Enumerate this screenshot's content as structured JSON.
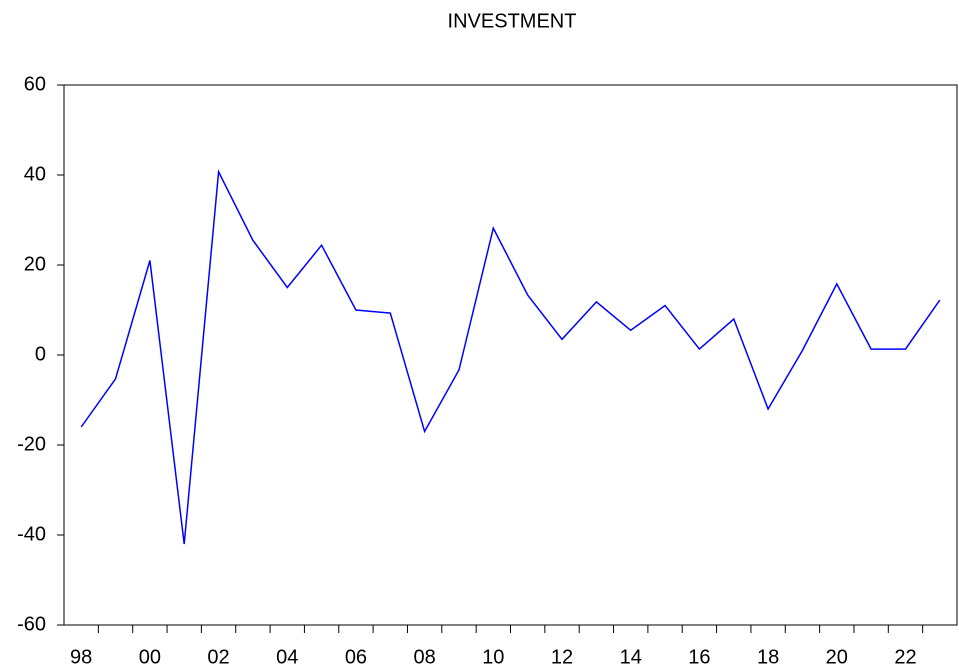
{
  "chart_data": {
    "type": "line",
    "title": "INVESTMENT",
    "categories": [
      "98",
      null,
      "00",
      null,
      "02",
      null,
      "04",
      null,
      "06",
      null,
      "08",
      null,
      "10",
      null,
      "12",
      null,
      "14",
      null,
      "16",
      null,
      "18",
      null,
      "20",
      null,
      "22",
      null
    ],
    "series": [
      {
        "name": "INVESTMENT",
        "color": "#0000ff",
        "values": [
          -16,
          -5.3,
          21,
          -42,
          40.7,
          25.5,
          15,
          24.4,
          10,
          9.3,
          -17,
          -3.3,
          28.2,
          13.3,
          3.5,
          11.8,
          5.5,
          11,
          1.3,
          8,
          -12,
          1,
          15.8,
          1.3,
          1.3,
          12.2
        ]
      }
    ],
    "ylim": [
      -60,
      60
    ],
    "yticks": [
      -60,
      -40,
      -20,
      0,
      20,
      40,
      60
    ],
    "grid": false
  }
}
